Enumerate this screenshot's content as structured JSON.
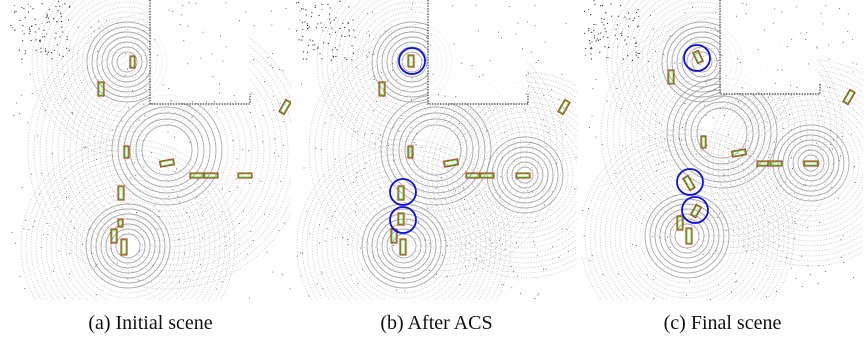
{
  "panels": [
    {
      "id": "a",
      "caption": "(a) Initial scene"
    },
    {
      "id": "b",
      "caption": "(b) After ACS"
    },
    {
      "id": "c",
      "caption": "(c) Final scene"
    }
  ],
  "colors": {
    "scan_rings": "#9a9a9a",
    "ground_truth_box": "#e02020",
    "prediction_box": "#44bb22",
    "highlight_circle": "#1010dd"
  }
}
